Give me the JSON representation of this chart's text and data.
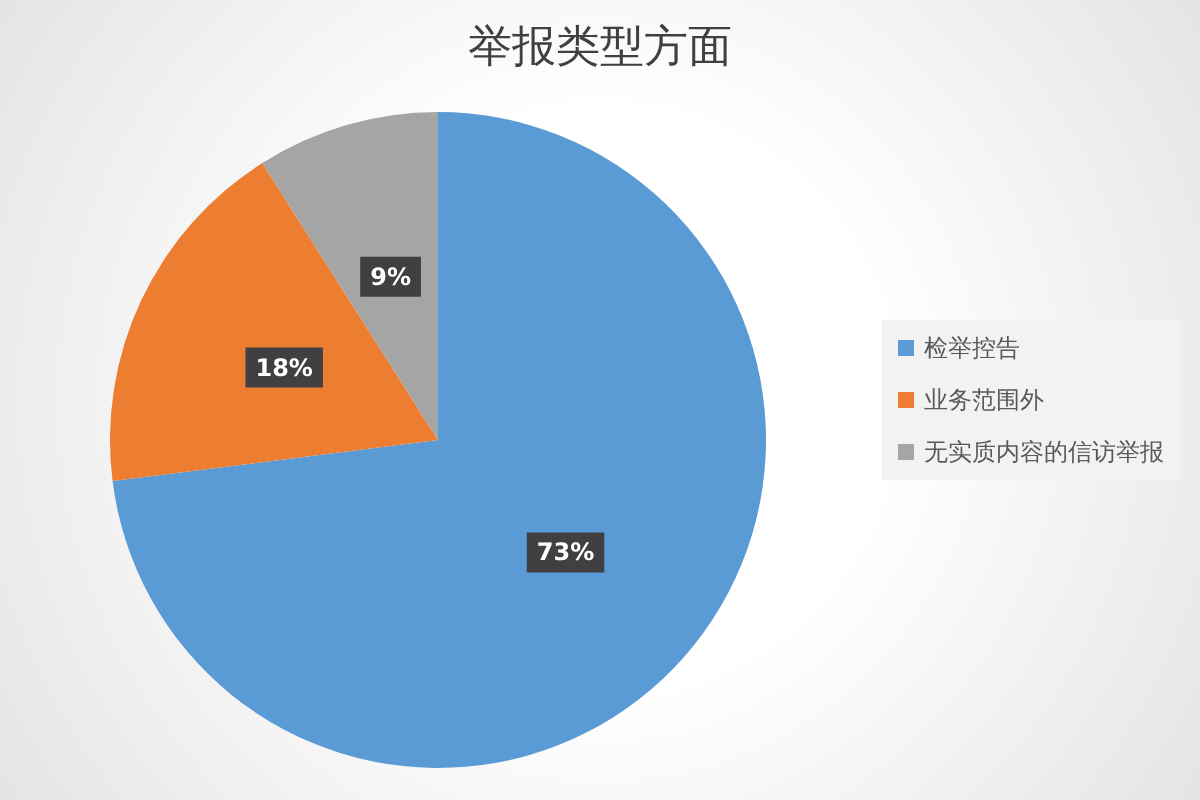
{
  "chart_data": {
    "type": "pie",
    "title": "举报类型方面",
    "categories": [
      "检举控告",
      "业务范围外",
      "无实质内容的信访举报"
    ],
    "values": [
      73,
      18,
      9
    ],
    "colors": [
      "#5b9bd5",
      "#ed7d31",
      "#a5a5a5"
    ],
    "value_labels": [
      "73%",
      "18%",
      "9%"
    ],
    "legend": "right"
  }
}
